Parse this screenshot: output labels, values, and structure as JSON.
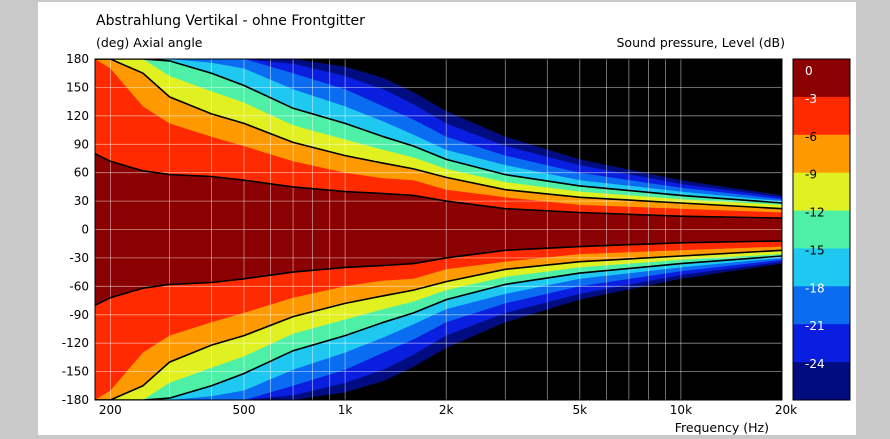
{
  "chart_data": {
    "type": "heatmap",
    "title": "Abstrahlung Vertikal - ohne Frontgitter",
    "ylabel": "(deg)  Axial angle",
    "xlabel": "Frequency  (Hz)",
    "colorbar_label": "Sound pressure, Level  (dB)",
    "x_scale": "log",
    "xlim": [
      180,
      20000
    ],
    "ylim": [
      -180,
      180
    ],
    "x_ticks": [
      {
        "value": 200,
        "label": "200"
      },
      {
        "value": 500,
        "label": "500"
      },
      {
        "value": 1000,
        "label": "1k"
      },
      {
        "value": 2000,
        "label": "2k"
      },
      {
        "value": 5000,
        "label": "5k"
      },
      {
        "value": 10000,
        "label": "10k"
      },
      {
        "value": 20000,
        "label": "20k"
      }
    ],
    "y_ticks": [
      180,
      150,
      120,
      90,
      60,
      30,
      0,
      -30,
      -60,
      -90,
      -120,
      -150,
      -180
    ],
    "grid": true,
    "colorbar": [
      {
        "label": "0",
        "color": "#8b0000"
      },
      {
        "label": "-3",
        "color": "#ff2a00"
      },
      {
        "label": "-6",
        "color": "#ff9900"
      },
      {
        "label": "-9",
        "color": "#e0f020"
      },
      {
        "label": "-12",
        "color": "#4ef0a8"
      },
      {
        "label": "-15",
        "color": "#1ec8f0"
      },
      {
        "label": "-18",
        "color": "#0a6cf0"
      },
      {
        "label": "-21",
        "color": "#0a1ee0"
      },
      {
        "label": "-24",
        "color": "#000c80"
      }
    ],
    "below_range_color": "#000000",
    "beamwidth_contours_deg": {
      "frequencies_hz": [
        180,
        200,
        250,
        300,
        400,
        500,
        700,
        1000,
        1300,
        1600,
        2000,
        3000,
        5000,
        10000,
        20000
      ],
      "band_0": [
        80,
        72,
        62,
        58,
        56,
        52,
        45,
        40,
        38,
        36,
        30,
        22,
        18,
        14,
        12
      ],
      "band_-3": [
        180,
        170,
        130,
        112,
        98,
        88,
        72,
        60,
        54,
        52,
        42,
        34,
        26,
        22,
        18
      ],
      "band_-6": [
        180,
        180,
        165,
        140,
        122,
        112,
        92,
        78,
        70,
        64,
        55,
        42,
        34,
        28,
        22
      ],
      "band_-9": [
        180,
        180,
        180,
        162,
        146,
        134,
        110,
        95,
        84,
        76,
        64,
        50,
        40,
        32,
        26
      ],
      "band_-12": [
        180,
        180,
        180,
        178,
        165,
        152,
        128,
        112,
        98,
        88,
        74,
        58,
        46,
        36,
        28
      ],
      "band_-15": [
        180,
        180,
        180,
        180,
        176,
        170,
        148,
        130,
        114,
        100,
        84,
        68,
        52,
        40,
        30
      ],
      "band_-18": [
        180,
        180,
        180,
        180,
        180,
        180,
        165,
        148,
        130,
        116,
        98,
        78,
        60,
        44,
        32
      ],
      "band_-21": [
        180,
        180,
        180,
        180,
        180,
        180,
        175,
        162,
        148,
        132,
        112,
        88,
        68,
        48,
        34
      ],
      "band_-24": [
        180,
        180,
        180,
        180,
        180,
        180,
        180,
        172,
        160,
        145,
        125,
        98,
        74,
        52,
        36
      ]
    }
  }
}
